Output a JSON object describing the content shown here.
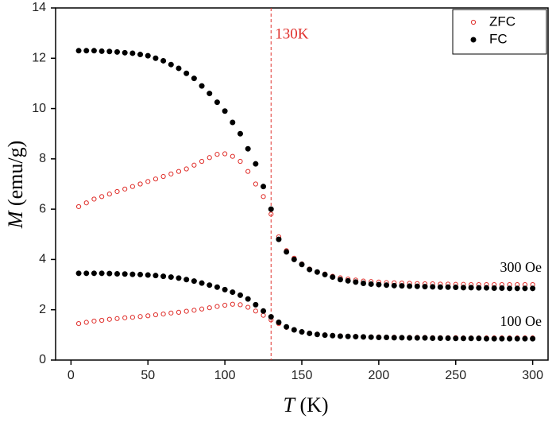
{
  "chart_data": {
    "type": "scatter",
    "x_label": {
      "symbol": "T",
      "unit": "(K)"
    },
    "y_label": {
      "symbol": "M",
      "unit": "(emu/g)"
    },
    "x": [
      5,
      10,
      15,
      20,
      25,
      30,
      35,
      40,
      45,
      50,
      55,
      60,
      65,
      70,
      75,
      80,
      85,
      90,
      95,
      100,
      105,
      110,
      115,
      120,
      125,
      130,
      135,
      140,
      145,
      150,
      155,
      160,
      165,
      170,
      175,
      180,
      185,
      190,
      195,
      200,
      205,
      210,
      215,
      220,
      225,
      230,
      235,
      240,
      245,
      250,
      255,
      260,
      265,
      270,
      275,
      280,
      285,
      290,
      295,
      300
    ],
    "series": [
      {
        "name": "ZFC",
        "color": "#e0302c",
        "marker": "open",
        "values": [
          6.1,
          6.25,
          6.4,
          6.5,
          6.6,
          6.7,
          6.8,
          6.9,
          7.0,
          7.1,
          7.2,
          7.3,
          7.4,
          7.5,
          7.6,
          7.75,
          7.9,
          8.05,
          8.18,
          8.2,
          8.1,
          7.9,
          7.5,
          7.0,
          6.5,
          5.8,
          4.9,
          4.35,
          4.05,
          3.82,
          3.62,
          3.5,
          3.42,
          3.33,
          3.27,
          3.22,
          3.18,
          3.14,
          3.12,
          3.1,
          3.08,
          3.07,
          3.06,
          3.05,
          3.04,
          3.03,
          3.03,
          3.02,
          3.02,
          3.01,
          3.01,
          3.0,
          3.0,
          3.0,
          3.0,
          3.0,
          3.0,
          3.0,
          3.0,
          3.0
        ]
      },
      {
        "name": "FC",
        "color": "#000000",
        "marker": "filled",
        "values": [
          12.3,
          12.3,
          12.3,
          12.28,
          12.27,
          12.25,
          12.22,
          12.2,
          12.15,
          12.1,
          12.0,
          11.9,
          11.75,
          11.6,
          11.4,
          11.2,
          10.9,
          10.6,
          10.25,
          9.9,
          9.45,
          9.0,
          8.4,
          7.8,
          6.9,
          6.0,
          4.8,
          4.3,
          4.0,
          3.8,
          3.6,
          3.5,
          3.4,
          3.3,
          3.2,
          3.15,
          3.1,
          3.05,
          3.02,
          3.0,
          2.98,
          2.96,
          2.95,
          2.94,
          2.93,
          2.92,
          2.91,
          2.9,
          2.9,
          2.89,
          2.88,
          2.88,
          2.87,
          2.87,
          2.86,
          2.86,
          2.85,
          2.85,
          2.85,
          2.85
        ]
      },
      {
        "name": "ZFC",
        "color": "#e0302c",
        "marker": "open",
        "values": [
          1.45,
          1.5,
          1.55,
          1.58,
          1.62,
          1.65,
          1.68,
          1.7,
          1.73,
          1.76,
          1.8,
          1.83,
          1.87,
          1.9,
          1.94,
          1.98,
          2.03,
          2.08,
          2.13,
          2.18,
          2.22,
          2.2,
          2.1,
          1.95,
          1.78,
          1.6,
          1.45,
          1.3,
          1.2,
          1.12,
          1.07,
          1.03,
          1.0,
          0.98,
          0.96,
          0.95,
          0.94,
          0.93,
          0.92,
          0.92,
          0.91,
          0.91,
          0.9,
          0.9,
          0.9,
          0.9,
          0.89,
          0.89,
          0.89,
          0.89,
          0.88,
          0.88,
          0.88,
          0.88,
          0.88,
          0.88,
          0.88,
          0.88,
          0.88,
          0.88
        ]
      },
      {
        "name": "FC",
        "color": "#000000",
        "marker": "filled",
        "values": [
          3.45,
          3.45,
          3.45,
          3.45,
          3.44,
          3.43,
          3.42,
          3.41,
          3.4,
          3.38,
          3.36,
          3.33,
          3.3,
          3.26,
          3.2,
          3.14,
          3.06,
          2.98,
          2.9,
          2.8,
          2.7,
          2.58,
          2.43,
          2.2,
          1.95,
          1.72,
          1.5,
          1.32,
          1.2,
          1.12,
          1.06,
          1.02,
          0.99,
          0.97,
          0.95,
          0.94,
          0.93,
          0.92,
          0.91,
          0.9,
          0.9,
          0.89,
          0.89,
          0.88,
          0.88,
          0.88,
          0.87,
          0.87,
          0.87,
          0.86,
          0.86,
          0.86,
          0.86,
          0.85,
          0.85,
          0.85,
          0.85,
          0.85,
          0.85,
          0.85
        ]
      }
    ],
    "vline": {
      "value": 130,
      "label": "130K",
      "color": "#e0302c"
    },
    "annotations": [
      "300 Oe",
      "100 Oe"
    ],
    "xlim": [
      -10,
      310
    ],
    "xticks": [
      0,
      50,
      100,
      150,
      200,
      250,
      300
    ],
    "ylim": [
      0,
      14
    ],
    "yticks": [
      0,
      2,
      4,
      6,
      8,
      10,
      12,
      14
    ],
    "legend": "upper right"
  }
}
